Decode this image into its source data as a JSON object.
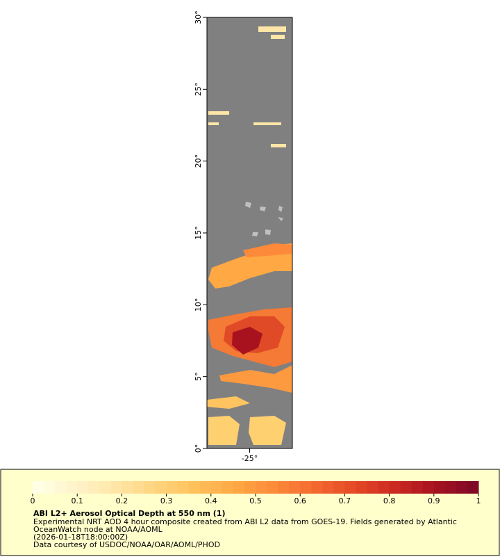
{
  "map": {
    "lat_axis": {
      "lim": [
        0,
        30
      ],
      "ticks": [
        {
          "value": 0,
          "label": "0°"
        },
        {
          "value": 5,
          "label": "5°"
        },
        {
          "value": 10,
          "label": "10°"
        },
        {
          "value": 15,
          "label": "15°"
        },
        {
          "value": 20,
          "label": "20°"
        },
        {
          "value": 25,
          "label": "25°"
        },
        {
          "value": 30,
          "label": "30°"
        }
      ]
    },
    "lon_axis": {
      "lim": [
        -28,
        -22
      ],
      "ticks": [
        {
          "value": -25,
          "label": "-25°"
        }
      ]
    },
    "colorbar": {
      "lim": [
        0,
        1
      ],
      "ticks": [
        0,
        0.1,
        0.2,
        0.3,
        0.4,
        0.5,
        0.6,
        0.7,
        0.8,
        0.9,
        1
      ],
      "colors": [
        "#ffffe6",
        "#fff3c8",
        "#ffe6a6",
        "#ffd47c",
        "#ffc05a",
        "#ffa844",
        "#fd8a3a",
        "#f46a30",
        "#e44a26",
        "#cc2a22",
        "#a8121f",
        "#800a26"
      ]
    },
    "legend": {
      "title": "ABI L2+ Aerosol Optical Depth at 550 nm (1)",
      "lines": [
        "Experimental NRT AOD 4 hour composite created from ABI L2 data from GOES-19. Fields generated by Atlantic",
        "OceanWatch node at NOAA/AOML",
        "(2026-01-18T18:00:00Z)",
        "Data courtesy of USDOC/NOAA/OAR/AOML/PHOD"
      ]
    }
  }
}
